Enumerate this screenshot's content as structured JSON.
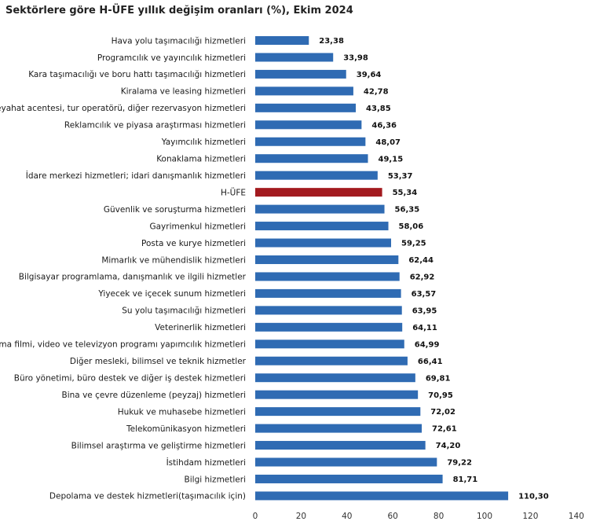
{
  "chart_data": {
    "type": "bar",
    "orientation": "horizontal",
    "title": "Sektörlere göre H-ÜFE yıllık değişim oranları (%), Ekim 2024",
    "xlabel": "",
    "ylabel": "",
    "xlim": [
      0,
      140
    ],
    "x_ticks": [
      "0",
      "20",
      "40",
      "60",
      "80",
      "100",
      "120",
      "140"
    ],
    "grid": false,
    "legend": "none",
    "colors": {
      "default": "#2f6bb3",
      "highlight": "#a31a1f"
    },
    "highlight_category": "H-ÜFE",
    "categories": [
      "Hava yolu taşımacılığı hizmetleri",
      "Programcılık ve yayıncılık hizmetleri",
      "Kara taşımacılığı ve boru hattı taşımacılığı hizmetleri",
      "Kiralama ve leasing hizmetleri",
      "Seyahat acentesi, tur operatörü, diğer rezervasyon hizmetleri",
      "Reklamcılık ve piyasa araştırması hizmetleri",
      "Yayımcılık hizmetleri",
      "Konaklama hizmetleri",
      "İdare merkezi hizmetleri; idari danışmanlık hizmetleri",
      "H-ÜFE",
      "Güvenlik ve soruşturma hizmetleri",
      "Gayrimenkul hizmetleri",
      "Posta ve kurye hizmetleri",
      "Mimarlık ve mühendislik hizmetleri",
      "Bilgisayar programlama, danışmanlık ve ilgili hizmetler",
      "Yiyecek ve içecek sunum hizmetleri",
      "Su yolu taşımacılığı hizmetleri",
      "Veterinerlik hizmetleri",
      "Sinema filmi, video ve televizyon programı yapımcılık hizmetleri",
      "Diğer mesleki, bilimsel ve teknik hizmetler",
      "Büro yönetimi, büro destek ve diğer iş destek hizmetleri",
      "Bina ve çevre düzenleme (peyzaj) hizmetleri",
      "Hukuk ve muhasebe hizmetleri",
      "Telekomünikasyon hizmetleri",
      "Bilimsel araştırma ve geliştirme hizmetleri",
      "İstihdam hizmetleri",
      "Bilgi hizmetleri",
      "Depolama ve destek hizmetleri(taşımacılık için)"
    ],
    "values": [
      23.38,
      33.98,
      39.64,
      42.78,
      43.85,
      46.36,
      48.07,
      49.15,
      53.37,
      55.34,
      56.35,
      58.06,
      59.25,
      62.44,
      62.92,
      63.57,
      63.95,
      64.11,
      64.99,
      66.41,
      69.81,
      70.95,
      72.02,
      72.61,
      74.2,
      79.22,
      81.71,
      110.3
    ],
    "value_labels": [
      "23,38",
      "33,98",
      "39,64",
      "42,78",
      "43,85",
      "46,36",
      "48,07",
      "49,15",
      "53,37",
      "55,34",
      "56,35",
      "58,06",
      "59,25",
      "62,44",
      "62,92",
      "63,57",
      "63,95",
      "64,11",
      "64,99",
      "66,41",
      "69,81",
      "70,95",
      "72,02",
      "72,61",
      "74,20",
      "79,22",
      "81,71",
      "110,30"
    ]
  }
}
